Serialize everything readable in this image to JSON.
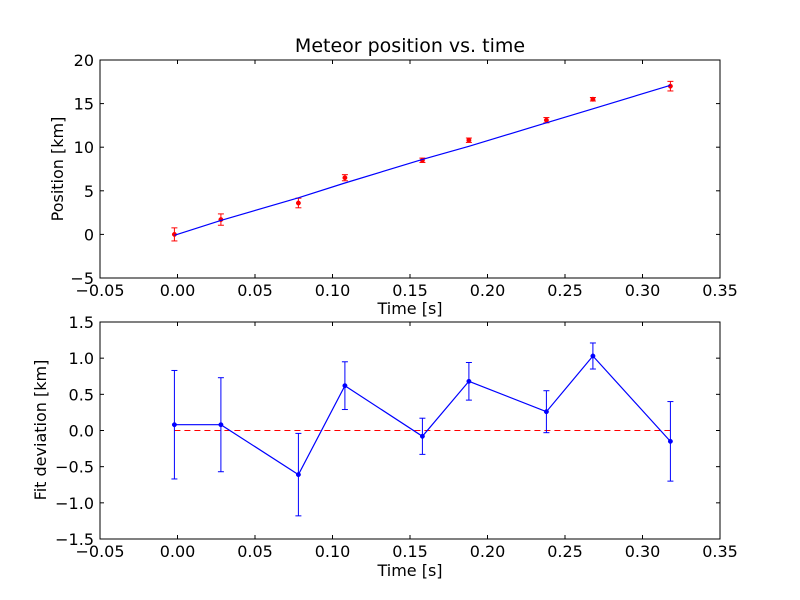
{
  "chart_data": [
    {
      "type": "scatter",
      "title": "Meteor position vs. time",
      "xlabel": "Time [s]",
      "ylabel": "Position [km]",
      "xlim": [
        -0.05,
        0.35
      ],
      "ylim": [
        -5,
        20
      ],
      "x_ticks": [
        "−0.05",
        "0.00",
        "0.05",
        "0.10",
        "0.15",
        "0.20",
        "0.25",
        "0.30",
        "0.35"
      ],
      "y_ticks": [
        "−5",
        "0",
        "5",
        "10",
        "15",
        "20"
      ],
      "grid": false,
      "series": [
        {
          "kind": "errorbar-points",
          "color": "#ff0000",
          "x": [
            -0.002,
            0.028,
            0.078,
            0.108,
            0.158,
            0.188,
            0.238,
            0.268,
            0.318
          ],
          "y": [
            0.0,
            1.7,
            3.6,
            6.5,
            8.5,
            10.8,
            13.1,
            15.5,
            17.0
          ],
          "yerr": [
            0.75,
            0.65,
            0.55,
            0.35,
            0.25,
            0.25,
            0.3,
            0.2,
            0.55
          ]
        },
        {
          "kind": "fit-line",
          "color": "#0000ff",
          "x": [
            -0.002,
            0.028,
            0.078,
            0.108,
            0.158,
            0.188,
            0.238,
            0.268,
            0.318
          ],
          "y": [
            -0.1,
            1.6,
            4.2,
            5.9,
            8.6,
            10.1,
            12.8,
            14.4,
            17.1
          ]
        }
      ]
    },
    {
      "type": "line",
      "xlabel": "Time [s]",
      "ylabel": "Fit deviation [km]",
      "xlim": [
        -0.05,
        0.35
      ],
      "ylim": [
        -1.5,
        1.5
      ],
      "x_ticks": [
        "−0.05",
        "0.00",
        "0.05",
        "0.10",
        "0.15",
        "0.20",
        "0.25",
        "0.30",
        "0.35"
      ],
      "y_ticks": [
        "−1.5",
        "−1.0",
        "−0.5",
        "0.0",
        "0.5",
        "1.0",
        "1.5"
      ],
      "grid": false,
      "reference_line": {
        "y": 0,
        "color": "#ff0000",
        "style": "dashed"
      },
      "series": [
        {
          "kind": "errorbar-line",
          "color": "#0000ff",
          "x": [
            -0.002,
            0.028,
            0.078,
            0.108,
            0.158,
            0.188,
            0.238,
            0.268,
            0.318
          ],
          "y": [
            0.08,
            0.08,
            -0.61,
            0.62,
            -0.08,
            0.68,
            0.26,
            1.03,
            -0.15
          ],
          "yerr": [
            0.75,
            0.65,
            0.57,
            0.33,
            0.25,
            0.26,
            0.29,
            0.18,
            0.55
          ]
        }
      ]
    }
  ]
}
